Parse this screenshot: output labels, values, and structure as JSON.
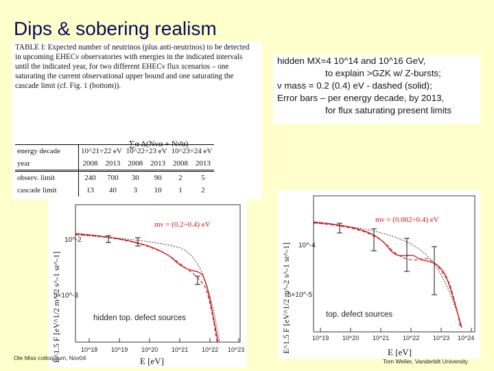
{
  "title": "Dips & sobering realism",
  "table": {
    "caption_label": "TABLE I:",
    "caption": "Expected number of neutrinos (plus anti-neutrinos) to be detected in upcoming EHECν observatories with energies in the indicated intervals until the indicated year, for two different EHECν flux scenarios – one saturating the current observational upper bound and one saturating the cascade limit (cf. Fig. 1 (bottom)).",
    "sum_header": "∑α Δ(Nνα + Nν̄α)",
    "row_energy_label": "energy decade",
    "energy_decades": [
      "10^21÷22 eV",
      "10^22÷23 eV",
      "10^23÷24 eV"
    ],
    "row_year_label": "year",
    "years": [
      "2008",
      "2013",
      "2008",
      "2013",
      "2008",
      "2013"
    ],
    "rows": [
      {
        "label": "observ. limit",
        "values": [
          "240",
          "700",
          "30",
          "90",
          "2",
          "5"
        ]
      },
      {
        "label": "cascade limit",
        "values": [
          "13",
          "40",
          "3",
          "10",
          "1",
          "2"
        ]
      }
    ]
  },
  "note_lines": [
    "hidden MX=4 10^14 and 10^16 GeV,",
    "to explain >GZK w/ Z-bursts;",
    "ν mass = 0.2 (0.4) eV - dashed (solid);",
    "Error bars – per energy decade, by 2013,",
    "for flux saturating present limits"
  ],
  "plot_left": {
    "mass_label": "mν = (0.2÷0.4) eV",
    "yaxis_label": "E^1.5 F [eV^1/2 m^-2 s^-1 sr^-1]",
    "xaxis_label": "E [eV]",
    "annotation": "hidden top. defect sources",
    "ytick_labels": [
      "10^-2",
      "5×10^-3"
    ],
    "xtick_labels": [
      "10^18",
      "10^19",
      "10^20",
      "10^21",
      "10^22",
      "10^23"
    ]
  },
  "plot_right": {
    "mass_label": "mν = (0.002÷0.4) eV",
    "yaxis_label": "E^1.5 F [eV^1/2 m^-2 s^-1 sr^-1]",
    "xaxis_label": "E [eV]",
    "annotation": "top. defect sources",
    "ytick_labels": [
      "10^-4",
      "5×10^-5"
    ],
    "xtick_labels": [
      "10^19",
      "10^20",
      "10^21",
      "10^22",
      "10^23",
      "10^24"
    ]
  },
  "footer_left": "Ole Miss colloquium, Nov04",
  "footer_right": "Tom Weiler, Vanderbilt University",
  "colors": {
    "background": "#ffffcc",
    "title": "#0a0a5a",
    "curve": "#cc1111",
    "mass_label": "#cc1111"
  }
}
